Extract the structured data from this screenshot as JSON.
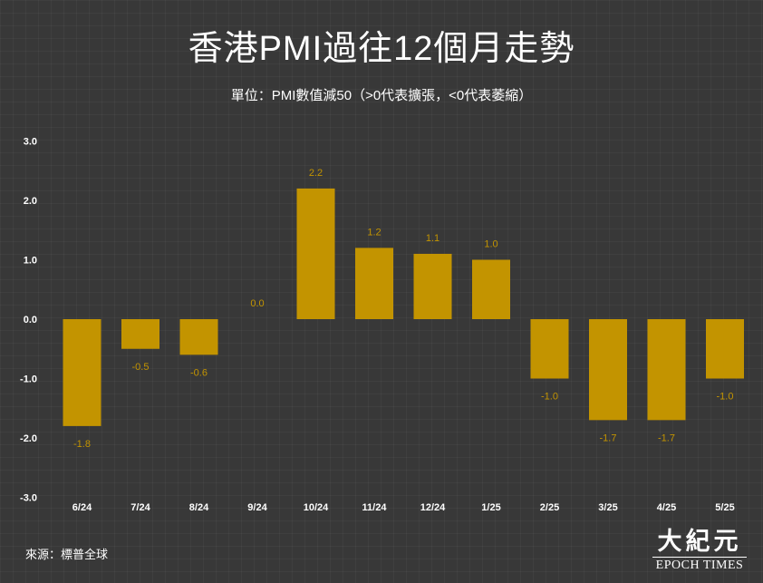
{
  "title": "香港PMI過往12個月走勢",
  "subtitle": "單位：PMI數值減50（>0代表擴張，<0代表萎縮）",
  "source": "來源：標普全球",
  "logo": {
    "cn": "大紀元",
    "en": "EPOCH TIMES"
  },
  "colors": {
    "bar": "#c39400",
    "label": "#c39400",
    "text": "#ffffff",
    "background": "#383838"
  },
  "chart_data": {
    "type": "bar",
    "categories": [
      "6/24",
      "7/24",
      "8/24",
      "9/24",
      "10/24",
      "11/24",
      "12/24",
      "1/25",
      "2/25",
      "3/25",
      "4/25",
      "5/25"
    ],
    "values": [
      -1.8,
      -0.5,
      -0.6,
      0.0,
      2.2,
      1.2,
      1.1,
      1.0,
      -1.0,
      -1.7,
      -1.7,
      -1.0
    ],
    "value_labels": [
      "-1.8",
      "-0.5",
      "-0.6",
      "0.0",
      "2.2",
      "1.2",
      "1.1",
      "1.0",
      "-1.0",
      "-1.7",
      "-1.7",
      "-1.0"
    ],
    "ylim": [
      -3.0,
      3.0
    ],
    "yticks": [
      "3.0",
      "2.0",
      "1.0",
      "0.0",
      "-1.0",
      "-2.0",
      "-3.0"
    ],
    "ytick_values": [
      3,
      2,
      1,
      0,
      -1,
      -2,
      -3
    ],
    "grid": false,
    "legend": "none"
  }
}
